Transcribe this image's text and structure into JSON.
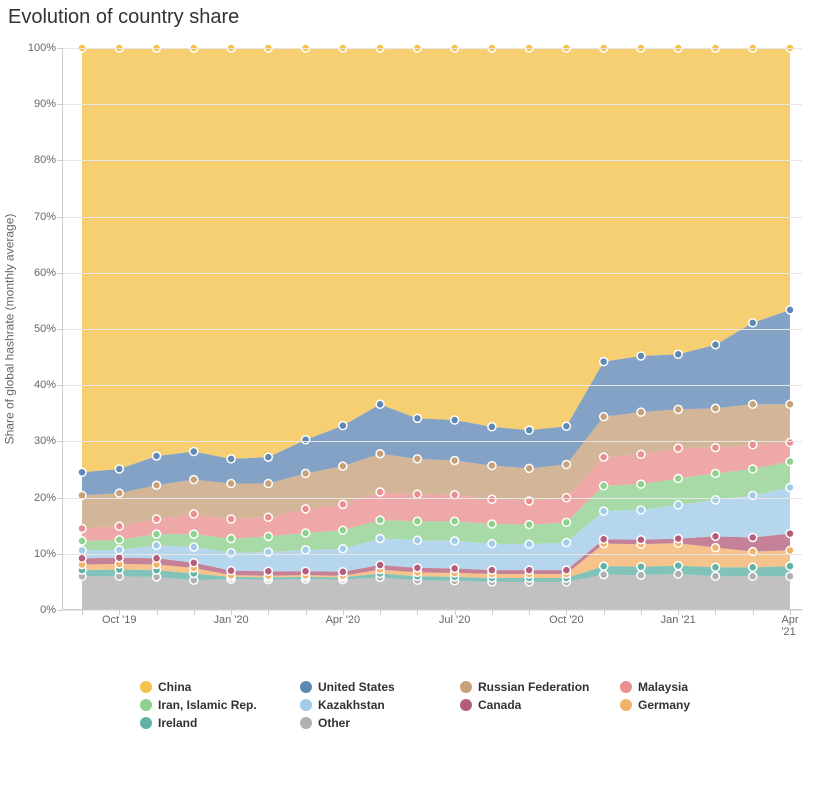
{
  "chart": {
    "type": "stacked-area",
    "title": "Evolution of country share",
    "y_label": "Share of global hashrate (monthly average)",
    "title_fontsize": 20,
    "label_fontsize": 12,
    "tick_fontsize": 11,
    "background_color": "#ffffff",
    "grid_color": "#e6e6e6",
    "axis_color": "#cccccc",
    "text_color": "#666666",
    "ylim": [
      0,
      100
    ],
    "ytick_step": 10,
    "ytick_suffix": "%",
    "x_labels_all": [
      "Sep '19",
      "Oct '19",
      "Nov '19",
      "Dec '19",
      "Jan '20",
      "Feb '20",
      "Mar '20",
      "Apr '20",
      "May '20",
      "Jun '20",
      "Jul '20",
      "Aug '20",
      "Sep '20",
      "Oct '20",
      "Nov '20",
      "Dec '20",
      "Jan '21",
      "Feb '21",
      "Mar '21",
      "Apr '21"
    ],
    "x_visible_ticks": [
      "Oct '19",
      "Jan '20",
      "Apr '20",
      "Jul '20",
      "Oct '20",
      "Jan '21",
      "Apr '21"
    ],
    "marker": {
      "radius": 4,
      "stroke": "#ffffff",
      "stroke_width": 1.5
    },
    "area_opacity": 0.78,
    "series": [
      {
        "name": "Other",
        "color": "#b0b0b0",
        "values": [
          6.0,
          6.0,
          5.9,
          5.3,
          5.5,
          5.4,
          5.5,
          5.4,
          5.8,
          5.3,
          5.2,
          5.0,
          5.0,
          5.0,
          6.3,
          6.2,
          6.4,
          6.0,
          6.0,
          6.0
        ]
      },
      {
        "name": "Ireland",
        "color": "#5fb2a5",
        "values": [
          1.1,
          1.2,
          1.2,
          1.2,
          0.4,
          0.4,
          0.4,
          0.4,
          0.7,
          0.7,
          0.7,
          0.7,
          0.7,
          0.7,
          1.5,
          1.5,
          1.5,
          1.6,
          1.6,
          1.8
        ]
      },
      {
        "name": "Germany",
        "color": "#f2b26a",
        "values": [
          1.0,
          1.0,
          1.0,
          1.0,
          0.3,
          0.3,
          0.3,
          0.3,
          0.7,
          0.7,
          0.7,
          0.7,
          0.7,
          0.7,
          4.0,
          4.0,
          4.0,
          3.5,
          2.8,
          2.8
        ]
      },
      {
        "name": "Canada",
        "color": "#b45d7b",
        "values": [
          1.1,
          1.1,
          1.1,
          0.9,
          0.8,
          0.8,
          0.7,
          0.7,
          0.8,
          0.8,
          0.8,
          0.7,
          0.7,
          0.7,
          0.8,
          0.8,
          0.8,
          2.0,
          2.5,
          3.0
        ]
      },
      {
        "name": "Kazakhstan",
        "color": "#a2cbe8",
        "values": [
          1.4,
          1.4,
          2.3,
          2.8,
          3.2,
          3.4,
          3.8,
          4.1,
          4.7,
          4.9,
          4.9,
          4.7,
          4.6,
          4.9,
          5.0,
          5.3,
          6.0,
          6.5,
          7.5,
          8.2
        ]
      },
      {
        "name": "Iran, Islamic Rep.",
        "color": "#8ed08e",
        "values": [
          1.7,
          1.8,
          2.0,
          2.3,
          2.5,
          2.8,
          3.0,
          3.3,
          3.3,
          3.4,
          3.5,
          3.5,
          3.5,
          3.6,
          4.5,
          4.6,
          4.7,
          4.7,
          4.7,
          4.6
        ]
      },
      {
        "name": "Malaysia",
        "color": "#e98f8f",
        "values": [
          2.2,
          2.4,
          2.7,
          3.6,
          3.5,
          3.4,
          4.3,
          4.6,
          5.0,
          4.8,
          4.7,
          4.4,
          4.2,
          4.4,
          5.1,
          5.3,
          5.4,
          4.6,
          4.3,
          3.4
        ]
      },
      {
        "name": "Russian Federation",
        "color": "#c7a17a",
        "values": [
          5.9,
          5.9,
          6.0,
          6.1,
          6.3,
          6.0,
          6.3,
          6.8,
          6.8,
          6.3,
          6.1,
          6.0,
          5.8,
          5.9,
          7.2,
          7.5,
          6.9,
          7.0,
          7.2,
          6.8
        ]
      },
      {
        "name": "United States",
        "color": "#6088b5",
        "values": [
          4.1,
          4.3,
          5.2,
          5.0,
          4.4,
          4.7,
          6.0,
          7.2,
          8.8,
          7.2,
          7.2,
          6.9,
          6.8,
          6.8,
          9.8,
          10.0,
          9.8,
          11.3,
          14.5,
          16.8
        ]
      },
      {
        "name": "China",
        "color": "#f4c24a",
        "values": [
          75.5,
          74.9,
          72.6,
          71.8,
          73.1,
          72.8,
          69.7,
          67.2,
          63.4,
          65.9,
          66.2,
          67.4,
          68.0,
          67.3,
          55.8,
          54.8,
          54.5,
          52.8,
          48.9,
          46.6
        ]
      }
    ],
    "legend_order": [
      "China",
      "United States",
      "Russian Federation",
      "Malaysia",
      "Iran, Islamic Rep.",
      "Kazakhstan",
      "Canada",
      "Germany",
      "Ireland",
      "Other"
    ]
  }
}
